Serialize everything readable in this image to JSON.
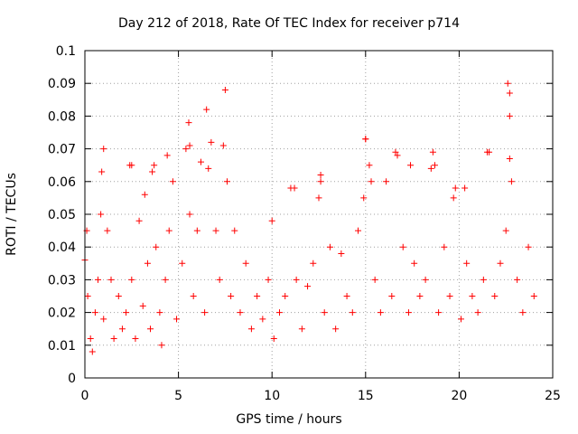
{
  "chart_data": {
    "type": "scatter",
    "title": "Day 212 of 2018, Rate Of TEC Index for receiver p714",
    "xlabel": "GPS time / hours",
    "ylabel": "ROTI / TECUs",
    "xlim": [
      0,
      25
    ],
    "ylim": [
      0,
      0.1
    ],
    "x_ticks": [
      0,
      5,
      10,
      15,
      20,
      25
    ],
    "x_tick_labels": [
      "0",
      "5",
      "10",
      "15",
      "20",
      "25"
    ],
    "y_ticks": [
      0,
      0.01,
      0.02,
      0.03,
      0.04,
      0.05,
      0.06,
      0.07,
      0.08,
      0.09,
      0.1
    ],
    "y_tick_labels": [
      "0",
      "0.01",
      "0.02",
      "0.03",
      "0.04",
      "0.05",
      "0.06",
      "0.07",
      "0.08",
      "0.09",
      "0.1"
    ],
    "grid": true,
    "legend": "none",
    "marker": "plus",
    "color": "#ff0000",
    "grid_color": "#a0a0a0",
    "series": [
      {
        "x": [
          0.0,
          0.1,
          0.15,
          0.3,
          0.4,
          0.55,
          0.7,
          0.85,
          0.9,
          1.0,
          1.2,
          1.4,
          1.55,
          1.8,
          2.0,
          2.2,
          2.4,
          2.5,
          2.7,
          2.9,
          3.1,
          3.2,
          3.35,
          3.5,
          3.7,
          3.8,
          4.0,
          4.1,
          4.3,
          4.5,
          4.7,
          4.9,
          5.2,
          5.4,
          5.55,
          5.6,
          5.8,
          6.0,
          6.2,
          6.4,
          6.6,
          6.75,
          7.0,
          7.2,
          7.4,
          7.6,
          7.8,
          8.0,
          8.3,
          8.6,
          8.9,
          9.2,
          9.5,
          9.8,
          10.1,
          10.4,
          10.7,
          11.0,
          11.3,
          11.6,
          11.9,
          12.2,
          12.5,
          12.6,
          12.8,
          13.1,
          13.4,
          13.7,
          14.0,
          14.3,
          14.6,
          14.9,
          15.0,
          15.2,
          15.5,
          15.8,
          16.1,
          16.4,
          16.7,
          17.0,
          17.3,
          17.6,
          17.9,
          18.2,
          18.5,
          18.6,
          18.9,
          19.2,
          19.5,
          19.8,
          20.1,
          20.4,
          20.7,
          21.0,
          21.3,
          21.6,
          21.9,
          22.2,
          22.5,
          22.6,
          22.8,
          23.1,
          23.4,
          23.7,
          24.0,
          1.0,
          2.5,
          3.6,
          4.4,
          5.6,
          6.5,
          7.5,
          10.0,
          11.2,
          12.6,
          15.0,
          15.3,
          16.6,
          17.4,
          18.7,
          19.7,
          20.3,
          21.5,
          22.7,
          22.7,
          22.7
        ],
        "y": [
          0.036,
          0.045,
          0.025,
          0.012,
          0.008,
          0.02,
          0.03,
          0.05,
          0.063,
          0.018,
          0.045,
          0.03,
          0.012,
          0.025,
          0.015,
          0.02,
          0.065,
          0.03,
          0.012,
          0.048,
          0.022,
          0.056,
          0.035,
          0.015,
          0.065,
          0.04,
          0.02,
          0.01,
          0.03,
          0.045,
          0.06,
          0.018,
          0.035,
          0.07,
          0.078,
          0.05,
          0.025,
          0.045,
          0.066,
          0.02,
          0.064,
          0.072,
          0.045,
          0.03,
          0.071,
          0.06,
          0.025,
          0.045,
          0.02,
          0.035,
          0.015,
          0.025,
          0.018,
          0.03,
          0.012,
          0.02,
          0.025,
          0.058,
          0.03,
          0.015,
          0.028,
          0.035,
          0.055,
          0.06,
          0.02,
          0.04,
          0.015,
          0.038,
          0.025,
          0.02,
          0.045,
          0.055,
          0.073,
          0.065,
          0.03,
          0.02,
          0.06,
          0.025,
          0.068,
          0.04,
          0.02,
          0.035,
          0.025,
          0.03,
          0.064,
          0.069,
          0.02,
          0.04,
          0.025,
          0.058,
          0.018,
          0.035,
          0.025,
          0.02,
          0.03,
          0.069,
          0.025,
          0.035,
          0.045,
          0.09,
          0.06,
          0.03,
          0.02,
          0.04,
          0.025,
          0.07,
          0.065,
          0.063,
          0.068,
          0.071,
          0.082,
          0.088,
          0.048,
          0.058,
          0.062,
          0.073,
          0.06,
          0.069,
          0.065,
          0.065,
          0.055,
          0.058,
          0.069,
          0.087,
          0.08,
          0.067
        ]
      }
    ]
  }
}
